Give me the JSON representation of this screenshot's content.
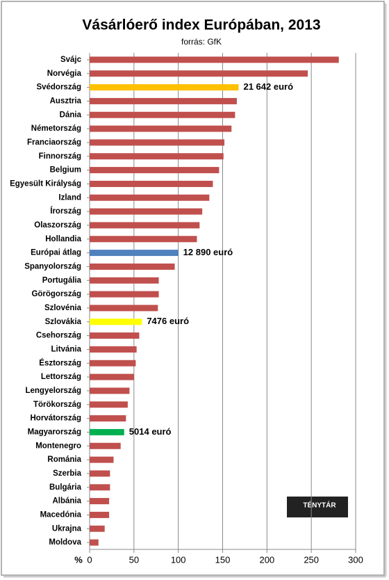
{
  "chart_data": {
    "type": "bar",
    "orientation": "horizontal",
    "title": "Vásárlóerő index Európában, 2013",
    "subtitle": "forrás: GfK",
    "x_unit_label": "%",
    "categories": [
      "Svájc",
      "Norvégia",
      "Svédország",
      "Ausztria",
      "Dánia",
      "Németország",
      "Franciaország",
      "Finnország",
      "Belgium",
      "Egyesült Királyság",
      "Izland",
      "Írország",
      "Olaszország",
      "Hollandia",
      "Európai átlag",
      "Spanyolország",
      "Portugália",
      "Görögország",
      "Szlovénia",
      "Szlovákia",
      "Csehország",
      "Litvánia",
      "Észtország",
      "Lettország",
      "Lengyelország",
      "Törökország",
      "Horvátország",
      "Magyarország",
      "Montenegro",
      "Románia",
      "Szerbia",
      "Bulgária",
      "Albánia",
      "Macedónia",
      "Ukrajna",
      "Moldova"
    ],
    "values": [
      281,
      246,
      168,
      166,
      164,
      160,
      152,
      151,
      146,
      139,
      135,
      127,
      124,
      121,
      100,
      96,
      78,
      78,
      77,
      59,
      56,
      53,
      52,
      50,
      45,
      43,
      41,
      39,
      35,
      27,
      23,
      23,
      22,
      22,
      17,
      10
    ],
    "colors": [
      "#c0504d",
      "#c0504d",
      "#ffc000",
      "#c0504d",
      "#c0504d",
      "#c0504d",
      "#c0504d",
      "#c0504d",
      "#c0504d",
      "#c0504d",
      "#c0504d",
      "#c0504d",
      "#c0504d",
      "#c0504d",
      "#4f81bd",
      "#c0504d",
      "#c0504d",
      "#c0504d",
      "#c0504d",
      "#ffff00",
      "#c0504d",
      "#c0504d",
      "#c0504d",
      "#c0504d",
      "#c0504d",
      "#c0504d",
      "#c0504d",
      "#00b050",
      "#c0504d",
      "#c0504d",
      "#c0504d",
      "#c0504d",
      "#c0504d",
      "#c0504d",
      "#c0504d",
      "#c0504d"
    ],
    "annotations": [
      null,
      null,
      "21 642 euró",
      null,
      null,
      null,
      null,
      null,
      null,
      null,
      null,
      null,
      null,
      null,
      "12 890 euró",
      null,
      null,
      null,
      null,
      "7476 euró",
      null,
      null,
      null,
      null,
      null,
      null,
      null,
      "5014 euró",
      null,
      null,
      null,
      null,
      null,
      null,
      null,
      null
    ],
    "xlim": [
      0,
      300
    ],
    "xticks": [
      0,
      50,
      100,
      150,
      200,
      250,
      300
    ],
    "grid": true,
    "logo": "TÉNYTÁR"
  }
}
